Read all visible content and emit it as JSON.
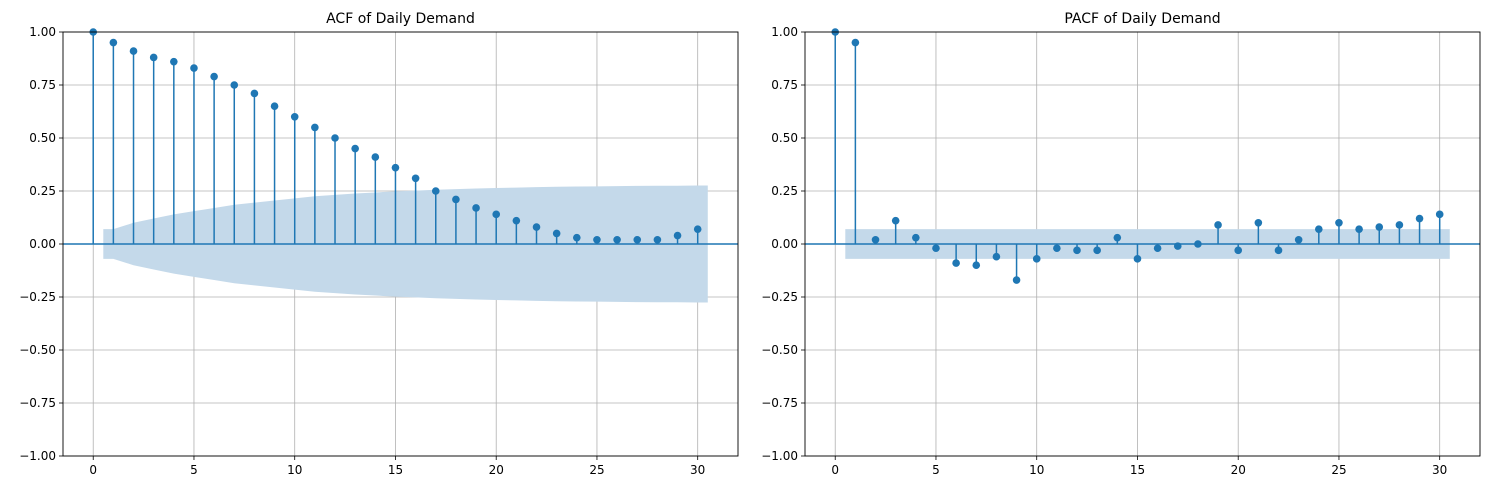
{
  "chart_data": [
    {
      "type": "stem",
      "title": "ACF of Daily Demand",
      "xlabel": "",
      "ylabel": "",
      "xlim": [
        -1.5,
        32
      ],
      "ylim": [
        -1,
        1
      ],
      "xticks": [
        "0",
        "5",
        "10",
        "15",
        "20",
        "25",
        "30"
      ],
      "yticks": [
        "−1.00",
        "−0.75",
        "−0.50",
        "−0.25",
        "0.00",
        "0.25",
        "0.50",
        "0.75",
        "1.00"
      ],
      "grid": true,
      "lags": [
        0,
        1,
        2,
        3,
        4,
        5,
        6,
        7,
        8,
        9,
        10,
        11,
        12,
        13,
        14,
        15,
        16,
        17,
        18,
        19,
        20,
        21,
        22,
        23,
        24,
        25,
        26,
        27,
        28,
        29,
        30
      ],
      "values": [
        1.0,
        0.95,
        0.91,
        0.88,
        0.86,
        0.83,
        0.79,
        0.75,
        0.71,
        0.65,
        0.6,
        0.55,
        0.5,
        0.45,
        0.41,
        0.36,
        0.31,
        0.25,
        0.21,
        0.17,
        0.14,
        0.11,
        0.08,
        0.05,
        0.03,
        0.02,
        0.02,
        0.02,
        0.02,
        0.04,
        0.07
      ],
      "confint": {
        "lags": [
          0.5,
          1,
          2,
          3,
          4,
          5,
          6,
          7,
          8,
          9,
          10,
          11,
          12,
          13,
          14,
          15,
          16,
          17,
          18,
          19,
          20,
          21,
          22,
          23,
          24,
          25,
          26,
          27,
          28,
          29,
          30,
          30.5
        ],
        "upper": [
          0.07,
          0.07,
          0.1,
          0.12,
          0.14,
          0.155,
          0.17,
          0.185,
          0.195,
          0.205,
          0.215,
          0.225,
          0.232,
          0.238,
          0.243,
          0.248,
          0.252,
          0.256,
          0.259,
          0.262,
          0.264,
          0.266,
          0.268,
          0.27,
          0.271,
          0.272,
          0.273,
          0.274,
          0.275,
          0.275,
          0.276,
          0.276
        ]
      },
      "colors": {
        "stem": "#1f77b4",
        "band": "#c4d9ea",
        "grid": "#b0b0b0"
      }
    },
    {
      "type": "stem",
      "title": "PACF of Daily Demand",
      "xlabel": "",
      "ylabel": "",
      "xlim": [
        -1.5,
        32
      ],
      "ylim": [
        -1,
        1
      ],
      "xticks": [
        "0",
        "5",
        "10",
        "15",
        "20",
        "25",
        "30"
      ],
      "yticks": [
        "−1.00",
        "−0.75",
        "−0.50",
        "−0.25",
        "0.00",
        "0.25",
        "0.50",
        "0.75",
        "1.00"
      ],
      "grid": true,
      "lags": [
        0,
        1,
        2,
        3,
        4,
        5,
        6,
        7,
        8,
        9,
        10,
        11,
        12,
        13,
        14,
        15,
        16,
        17,
        18,
        19,
        20,
        21,
        22,
        23,
        24,
        25,
        26,
        27,
        28,
        29,
        30
      ],
      "values": [
        1.0,
        0.95,
        0.02,
        0.11,
        0.03,
        -0.02,
        -0.09,
        -0.1,
        -0.06,
        -0.17,
        -0.07,
        -0.02,
        -0.03,
        -0.03,
        0.03,
        -0.07,
        -0.02,
        -0.01,
        0.0,
        0.09,
        -0.03,
        0.1,
        -0.03,
        0.02,
        0.07,
        0.1,
        0.07,
        0.08,
        0.09,
        0.12,
        0.14
      ],
      "confint": {
        "lags": [
          0.5,
          30.5
        ],
        "upper": [
          0.07,
          0.07
        ]
      },
      "colors": {
        "stem": "#1f77b4",
        "band": "#c4d9ea",
        "grid": "#b0b0b0"
      }
    }
  ]
}
